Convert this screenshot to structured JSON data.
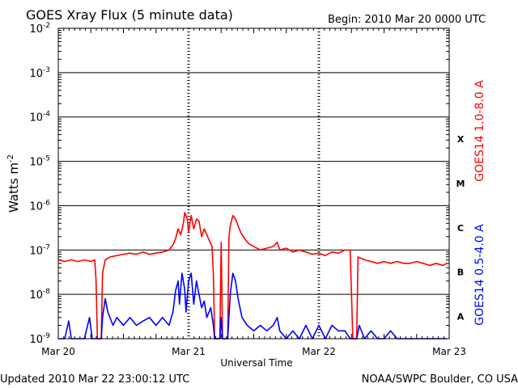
{
  "header": {
    "title": "GOES Xray Flux (5 minute data)",
    "begin": "Begin:  2010 Mar 20 0000 UTC"
  },
  "footer": {
    "updated": "Updated 2010 Mar 22 23:00:12 UTC",
    "credit": "NOAA/SWPC Boulder, CO USA"
  },
  "colors": {
    "long_channel": "#ff0000",
    "short_channel": "#0000ff",
    "frame": "#000000"
  },
  "chart_data": {
    "type": "line",
    "title": "GOES Xray Flux (5 minute data)",
    "xlabel": "Universal Time",
    "ylabel_base": "Watts m",
    "ylabel_sup": "-2",
    "yscale": "log",
    "ylim": [
      1e-09,
      0.01
    ],
    "xlim_days": [
      0,
      3
    ],
    "x_ticks": [
      {
        "day": 0,
        "label": "Mar 20"
      },
      {
        "day": 1,
        "label": "Mar 21"
      },
      {
        "day": 2,
        "label": "Mar 22"
      },
      {
        "day": 3,
        "label": "Mar 23"
      }
    ],
    "y_ticks": [
      {
        "exp": -2,
        "label": "10",
        "sup": "-2"
      },
      {
        "exp": -3,
        "label": "10",
        "sup": "-3"
      },
      {
        "exp": -4,
        "label": "10",
        "sup": "-4"
      },
      {
        "exp": -5,
        "label": "10",
        "sup": "-5"
      },
      {
        "exp": -6,
        "label": "10",
        "sup": "-6"
      },
      {
        "exp": -7,
        "label": "10",
        "sup": "-7"
      },
      {
        "exp": -8,
        "label": "10",
        "sup": "-8"
      },
      {
        "exp": -9,
        "label": "10",
        "sup": "-9"
      }
    ],
    "grid_horizontal": true,
    "flare_classes": [
      {
        "label": "X",
        "exp": -4
      },
      {
        "label": "M",
        "exp": -5
      },
      {
        "label": "C",
        "exp": -6
      },
      {
        "label": "B",
        "exp": -7
      },
      {
        "label": "A",
        "exp": -8
      }
    ],
    "series": [
      {
        "name": "GOES14 1.0-8.0 A",
        "color": "#ff0000",
        "points": [
          [
            0.0,
            6e-08
          ],
          [
            0.05,
            5.5e-08
          ],
          [
            0.1,
            6e-08
          ],
          [
            0.15,
            5.5e-08
          ],
          [
            0.2,
            6e-08
          ],
          [
            0.25,
            5.5e-08
          ],
          [
            0.28,
            6e-08
          ],
          [
            0.29,
            2e-08
          ],
          [
            0.3,
            1e-09
          ],
          [
            0.33,
            1e-09
          ],
          [
            0.34,
            3e-08
          ],
          [
            0.36,
            6e-08
          ],
          [
            0.4,
            7e-08
          ],
          [
            0.45,
            7.5e-08
          ],
          [
            0.5,
            8e-08
          ],
          [
            0.55,
            8.5e-08
          ],
          [
            0.6,
            8e-08
          ],
          [
            0.65,
            9e-08
          ],
          [
            0.7,
            8e-08
          ],
          [
            0.75,
            8.5e-08
          ],
          [
            0.8,
            9e-08
          ],
          [
            0.85,
            1e-07
          ],
          [
            0.88,
            1.3e-07
          ],
          [
            0.9,
            1.8e-07
          ],
          [
            0.92,
            3e-07
          ],
          [
            0.94,
            2.2e-07
          ],
          [
            0.96,
            4e-07
          ],
          [
            0.97,
            7e-07
          ],
          [
            0.99,
            5e-07
          ],
          [
            1.0,
            2.5e-07
          ],
          [
            1.02,
            6e-07
          ],
          [
            1.04,
            3e-07
          ],
          [
            1.06,
            5e-07
          ],
          [
            1.08,
            4.5e-07
          ],
          [
            1.1,
            2e-07
          ],
          [
            1.12,
            3e-07
          ],
          [
            1.14,
            2.2e-07
          ],
          [
            1.16,
            1.6e-07
          ],
          [
            1.18,
            1.2e-07
          ],
          [
            1.19,
            3e-08
          ],
          [
            1.2,
            1e-09
          ],
          [
            1.24,
            1e-09
          ],
          [
            1.25,
            1.5e-07
          ],
          [
            1.26,
            1e-09
          ],
          [
            1.3,
            1e-09
          ],
          [
            1.31,
            2e-07
          ],
          [
            1.32,
            3.5e-07
          ],
          [
            1.34,
            6e-07
          ],
          [
            1.36,
            5e-07
          ],
          [
            1.38,
            3.5e-07
          ],
          [
            1.4,
            2.5e-07
          ],
          [
            1.43,
            1.8e-07
          ],
          [
            1.46,
            1.4e-07
          ],
          [
            1.5,
            1.2e-07
          ],
          [
            1.55,
            1e-07
          ],
          [
            1.6,
            1.1e-07
          ],
          [
            1.65,
            1.2e-07
          ],
          [
            1.68,
            1.5e-07
          ],
          [
            1.7,
            1e-07
          ],
          [
            1.75,
            1.1e-07
          ],
          [
            1.8,
            9e-08
          ],
          [
            1.85,
            1e-07
          ],
          [
            1.9,
            9e-08
          ],
          [
            1.95,
            8e-08
          ],
          [
            2.0,
            8.5e-08
          ],
          [
            2.05,
            7.5e-08
          ],
          [
            2.1,
            9e-08
          ],
          [
            2.15,
            8.5e-08
          ],
          [
            2.2,
            1e-07
          ],
          [
            2.24,
            1e-07
          ],
          [
            2.25,
            1e-08
          ],
          [
            2.26,
            1e-09
          ],
          [
            2.29,
            1e-09
          ],
          [
            2.3,
            7e-08
          ],
          [
            2.35,
            6e-08
          ],
          [
            2.4,
            5.5e-08
          ],
          [
            2.45,
            5e-08
          ],
          [
            2.5,
            5.5e-08
          ],
          [
            2.55,
            5e-08
          ],
          [
            2.6,
            5.5e-08
          ],
          [
            2.65,
            5e-08
          ],
          [
            2.7,
            5e-08
          ],
          [
            2.75,
            5.5e-08
          ],
          [
            2.8,
            5e-08
          ],
          [
            2.85,
            4.5e-08
          ],
          [
            2.9,
            5e-08
          ],
          [
            2.95,
            4.5e-08
          ],
          [
            2.98,
            5e-08
          ]
        ]
      },
      {
        "name": "GOES14 0.5-4.0 A",
        "color": "#0000ff",
        "points": [
          [
            0.0,
            1e-09
          ],
          [
            0.05,
            1e-09
          ],
          [
            0.08,
            2.5e-09
          ],
          [
            0.1,
            1e-09
          ],
          [
            0.2,
            1e-09
          ],
          [
            0.24,
            3e-09
          ],
          [
            0.26,
            1e-09
          ],
          [
            0.3,
            1e-09
          ],
          [
            0.33,
            1e-09
          ],
          [
            0.34,
            3e-09
          ],
          [
            0.36,
            8e-09
          ],
          [
            0.38,
            4e-09
          ],
          [
            0.42,
            2e-09
          ],
          [
            0.45,
            3e-09
          ],
          [
            0.5,
            2e-09
          ],
          [
            0.55,
            3e-09
          ],
          [
            0.6,
            2e-09
          ],
          [
            0.65,
            2.5e-09
          ],
          [
            0.7,
            3e-09
          ],
          [
            0.75,
            2e-09
          ],
          [
            0.8,
            3e-09
          ],
          [
            0.85,
            2e-09
          ],
          [
            0.88,
            4e-09
          ],
          [
            0.9,
            1.2e-08
          ],
          [
            0.92,
            2e-08
          ],
          [
            0.93,
            6e-09
          ],
          [
            0.95,
            3e-08
          ],
          [
            0.97,
            1.3e-08
          ],
          [
            0.98,
            4e-09
          ],
          [
            1.0,
            2e-08
          ],
          [
            1.02,
            3e-08
          ],
          [
            1.04,
            6e-09
          ],
          [
            1.06,
            2e-08
          ],
          [
            1.08,
            1e-08
          ],
          [
            1.1,
            5e-09
          ],
          [
            1.12,
            7e-09
          ],
          [
            1.14,
            3e-09
          ],
          [
            1.17,
            5e-09
          ],
          [
            1.19,
            2e-09
          ],
          [
            1.2,
            1e-09
          ],
          [
            1.24,
            1e-09
          ],
          [
            1.25,
            3e-09
          ],
          [
            1.26,
            1e-09
          ],
          [
            1.3,
            1e-09
          ],
          [
            1.32,
            1e-08
          ],
          [
            1.34,
            3e-08
          ],
          [
            1.36,
            2e-08
          ],
          [
            1.38,
            8e-09
          ],
          [
            1.41,
            3e-09
          ],
          [
            1.45,
            2e-09
          ],
          [
            1.5,
            1.5e-09
          ],
          [
            1.55,
            2e-09
          ],
          [
            1.6,
            1.5e-09
          ],
          [
            1.65,
            2e-09
          ],
          [
            1.68,
            3e-09
          ],
          [
            1.7,
            1.5e-09
          ],
          [
            1.75,
            1e-09
          ],
          [
            1.8,
            1.5e-09
          ],
          [
            1.85,
            1e-09
          ],
          [
            1.9,
            2e-09
          ],
          [
            1.95,
            1e-09
          ],
          [
            2.0,
            2e-09
          ],
          [
            2.05,
            1e-09
          ],
          [
            2.1,
            2e-09
          ],
          [
            2.15,
            1.5e-09
          ],
          [
            2.2,
            1.5e-09
          ],
          [
            2.24,
            1e-09
          ],
          [
            2.25,
            1e-09
          ],
          [
            2.29,
            1e-09
          ],
          [
            2.31,
            2e-09
          ],
          [
            2.35,
            1e-09
          ],
          [
            2.4,
            1.5e-09
          ],
          [
            2.45,
            1e-09
          ],
          [
            2.5,
            1e-09
          ],
          [
            2.55,
            1.5e-09
          ],
          [
            2.6,
            1e-09
          ],
          [
            2.7,
            1e-09
          ],
          [
            2.8,
            1e-09
          ],
          [
            2.9,
            1e-09
          ],
          [
            2.98,
            1e-09
          ]
        ]
      }
    ]
  }
}
